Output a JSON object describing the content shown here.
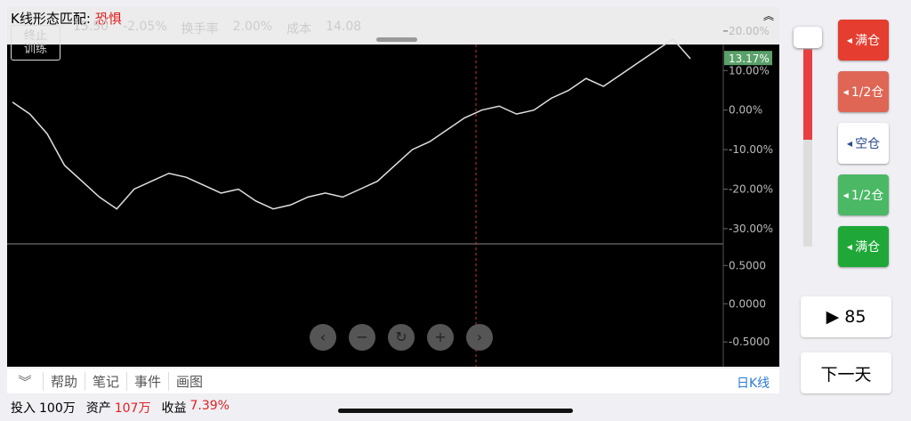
{
  "header": {
    "title": "K线形态匹配:",
    "mood": "恐惧",
    "stop_button": "终止\n训练",
    "stats": [
      "15.50",
      "-2.05%",
      "换手率",
      "2.00%",
      "成本",
      "14.08"
    ]
  },
  "chart_data": {
    "type": "line",
    "name": "收盘",
    "color": "#e0e0e0",
    "values": [
      2,
      -1,
      -6,
      -14,
      -18,
      -22,
      -25,
      -20,
      -18,
      -16,
      -17,
      -19,
      -21,
      -20,
      -23,
      -25,
      -24,
      -22,
      -21,
      -22,
      -20,
      -18,
      -14,
      -10,
      -8,
      -5,
      -2,
      0,
      1,
      -1,
      0,
      3,
      5,
      8,
      6,
      9,
      12,
      15,
      18,
      13
    ],
    "ylim": [
      -33.4,
      24.7
    ],
    "yticks": [
      {
        "value": 20,
        "label": "20.00%"
      },
      {
        "value": 10,
        "label": "10.00%"
      },
      {
        "value": 0,
        "label": "0.00%"
      },
      {
        "value": -10,
        "label": "-10.00%"
      },
      {
        "value": -20,
        "label": "-20.00%"
      },
      {
        "value": -30,
        "label": "-30.00%"
      }
    ],
    "last_label": {
      "value": 13.17,
      "label": "13.17%"
    },
    "macd_ylim": [
      -0.8,
      0.76
    ],
    "macd_ticks": [
      {
        "value": 0.5,
        "label": "0.5000"
      },
      {
        "value": 0,
        "label": "0.0000"
      },
      {
        "value": -0.5,
        "label": "-0.5000"
      }
    ]
  },
  "toolbar": {
    "items": [
      "帮助",
      "笔记",
      "事件",
      "画图"
    ],
    "period": "日K线"
  },
  "footer": [
    [
      "投入",
      "100万"
    ],
    [
      "资产",
      "107万"
    ],
    [
      "收益",
      "7.39%"
    ]
  ],
  "side": {
    "buttons": [
      "满仓",
      "1/2仓",
      "空仓",
      "1/2仓",
      "满仓"
    ],
    "play": "▶ 85",
    "next": "下一天"
  }
}
